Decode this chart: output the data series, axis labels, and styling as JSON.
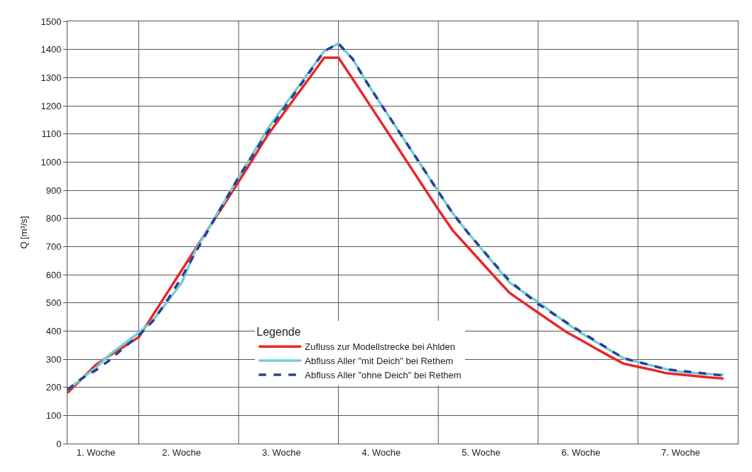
{
  "chart_data": {
    "type": "line",
    "ylabel": "Q [m³/s]",
    "legend_title": "Legende",
    "legend": "bottom",
    "categories": [
      null,
      null,
      "1. Woche",
      null,
      null,
      null,
      null,
      null,
      "2. Woche",
      null,
      null,
      null,
      null,
      null,
      null,
      "3. Woche",
      null,
      null,
      null,
      null,
      null,
      null,
      "4. Woche",
      null,
      null,
      null,
      null,
      null,
      null,
      "5. Woche",
      null,
      null,
      null,
      null,
      null,
      null,
      "6. Woche",
      null,
      null,
      null,
      null,
      null,
      null,
      "7. Woche",
      null,
      null,
      null,
      null
    ],
    "ylim": [
      0,
      1500
    ],
    "yticks": [
      0,
      100,
      200,
      300,
      400,
      500,
      600,
      700,
      800,
      900,
      1000,
      1100,
      1200,
      1300,
      1400,
      1500
    ],
    "grid": true,
    "series": [
      {
        "name": "Zufluss zur Modellstrecke bei Ahlden",
        "color": "#e8262a",
        "line_style": "solid",
        "values": [
          180,
          230,
          280,
          314,
          346,
          378,
          457,
          536,
          615,
          694,
          773,
          851,
          930,
          1011,
          1093,
          1163,
          1232,
          1301,
          1371,
          1371,
          1295,
          1218,
          1141,
          1064,
          986,
          909,
          832,
          758,
          702,
          646,
          590,
          535,
          500,
          465,
          430,
          396,
          368,
          339,
          311,
          284,
          273,
          262,
          250,
          245,
          240,
          235,
          231,
          null
        ]
      },
      {
        "name": "Abfluss Aller \"mit Deich\" bei Rethem",
        "color": "#72cfcf",
        "line_style": "solid",
        "values": [
          191,
          231,
          270,
          318,
          356,
          394,
          437,
          504,
          571,
          689,
          775,
          860,
          946,
          1030,
          1115,
          1186,
          1255,
          1325,
          1394,
          1421,
          1366,
          1282,
          1204,
          1127,
          1050,
          973,
          895,
          819,
          754,
          693,
          633,
          572,
          537,
          503,
          465,
          428,
          393,
          363,
          333,
          303,
          290,
          277,
          264,
          255,
          251,
          247,
          244,
          null
        ]
      },
      {
        "name": "Abfluss Aller \"ohne Deich\" bei Rethem",
        "color": "#2a3f99",
        "line_style": "dashed",
        "values": [
          191,
          231,
          261,
          298,
          343,
          384,
          436,
          509,
          590,
          681,
          770,
          858,
          946,
          1025,
          1104,
          1177,
          1249,
          1321,
          1394,
          1421,
          1366,
          1282,
          1204,
          1127,
          1050,
          973,
          895,
          819,
          754,
          695,
          635,
          578,
          536,
          496,
          463,
          430,
          397,
          366,
          334,
          303,
          290,
          277,
          264,
          258,
          253,
          247,
          242,
          null
        ]
      }
    ]
  }
}
